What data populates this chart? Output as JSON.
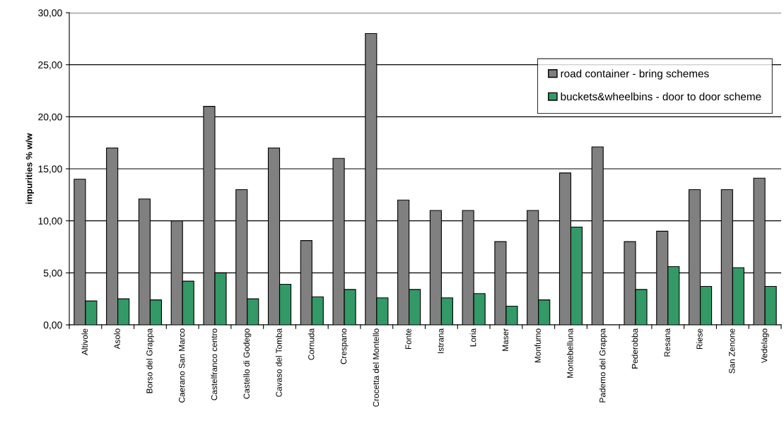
{
  "chart_data": {
    "type": "bar",
    "ylabel": "impurities % w/w",
    "categories": [
      "Altivole",
      "Asolo",
      "Borso del Grappa",
      "Caerano San Marco",
      "Castelfranco centro",
      "Castello di Godego",
      "Cavaso del Tomba",
      "Cornuda",
      "Crespano",
      "Crocetta del Montello",
      "Fonte",
      "Istrana",
      "Loria",
      "Maser",
      "Monfumo",
      "Montebelluna",
      "Pademo del Grappa",
      "Pederobba",
      "Resana",
      "Riese",
      "San Zenone",
      "Vedelago"
    ],
    "series": [
      {
        "name": "road container - bring schemes",
        "color": "#808080",
        "values": [
          14.0,
          17.0,
          12.1,
          10.0,
          21.0,
          13.0,
          17.0,
          8.1,
          16.0,
          28.0,
          12.0,
          11.0,
          11.0,
          8.0,
          11.0,
          14.6,
          17.1,
          8.0,
          9.0,
          13.0,
          13.0,
          14.1
        ]
      },
      {
        "name": "buckets&wheelbins - door to door scheme",
        "color": "#339966",
        "values": [
          2.3,
          2.5,
          2.4,
          4.2,
          5.0,
          2.5,
          3.9,
          2.7,
          3.4,
          2.6,
          3.4,
          2.6,
          3.0,
          1.8,
          2.4,
          9.4,
          null,
          3.4,
          5.6,
          3.7,
          5.5,
          3.7
        ]
      }
    ],
    "ylim": [
      0,
      30
    ],
    "yticks": [
      {
        "value": 0,
        "label": "0,00"
      },
      {
        "value": 5,
        "label": "5,00"
      },
      {
        "value": 10,
        "label": "10,00"
      },
      {
        "value": 15,
        "label": "15,00"
      },
      {
        "value": 20,
        "label": "20,00"
      },
      {
        "value": 25,
        "label": "25,00"
      },
      {
        "value": 30,
        "label": "30,00"
      }
    ],
    "grid": "y",
    "legend": "top right"
  }
}
